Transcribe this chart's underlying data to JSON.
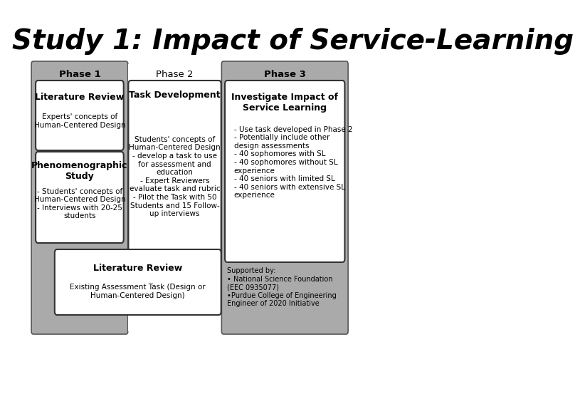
{
  "title": "Study 1: Impact of Service-Learning",
  "title_fontsize": 28,
  "title_fontstyle": "italic",
  "title_fontweight": "bold",
  "bg_color": "#ffffff",
  "white": "#ffffff",
  "phase1_label": "Phase 1",
  "phase2_label": "Phase 2",
  "phase3_label": "Phase 3",
  "lit_review_title": "Literature Review",
  "lit_review_body": "Experts' concepts of\nHuman-Centered Design",
  "phenom_title": "Phenomenographic\nStudy",
  "phenom_body": "- Students' concepts of\nHuman-Centered Design\n- Interviews with 20-25\nstudents",
  "task_dev_title": "Task Development",
  "task_dev_body": "Students' concepts of\nHuman-Centered Design\n- develop a task to use\nfor assessment and\neducation\n- Expert Reviewers\nevaluate task and rubric\n- Pilot the Task with 50\nStudents and 15 Follow-\nup interviews",
  "investigate_title": "Investigate Impact of\nService Learning",
  "investigate_body": "- Use task developed in Phase 2\n- Potentially include other\ndesign assessments\n- 40 sophomores with SL\n- 40 sophomores without SL\nexperience\n- 40 seniors with limited SL\n- 40 seniors with extensive SL\nexperience",
  "lit_review2_title": "Literature Review",
  "lit_review2_body": "Existing Assessment Task (Design or\nHuman-Centered Design)",
  "supported_text": "Supported by:\n• National Science Foundation\n(EEC 0935077)\n•Purdue College of Engineering\nEngineer of 2020 Initiative"
}
